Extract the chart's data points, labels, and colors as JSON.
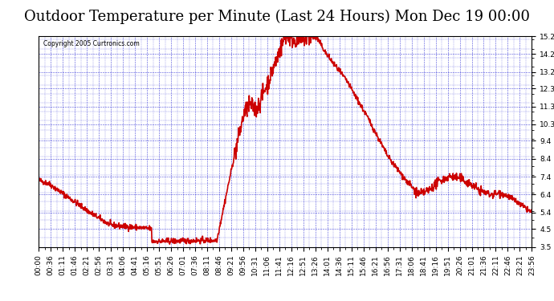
{
  "title": "Outdoor Temperature per Minute (Last 24 Hours) Mon Dec 19 00:00",
  "copyright": "Copyright 2005 Curtronics.com",
  "background_color": "#ffffff",
  "plot_bg_color": "#ffffff",
  "grid_color": "#0000cc",
  "line_color": "#cc0000",
  "line_width": 1.2,
  "ylim": [
    3.5,
    15.2
  ],
  "yticks": [
    3.5,
    4.5,
    5.4,
    6.4,
    7.4,
    8.4,
    9.4,
    10.3,
    11.3,
    12.3,
    13.2,
    14.2,
    15.2
  ],
  "xtick_labels": [
    "00:00",
    "00:36",
    "01:11",
    "01:46",
    "02:21",
    "02:56",
    "03:31",
    "04:06",
    "04:41",
    "05:16",
    "05:51",
    "06:26",
    "07:01",
    "07:36",
    "08:11",
    "08:46",
    "09:21",
    "09:56",
    "10:31",
    "11:06",
    "11:41",
    "12:16",
    "12:51",
    "13:26",
    "14:01",
    "14:36",
    "15:11",
    "15:46",
    "16:21",
    "16:56",
    "17:31",
    "18:06",
    "18:41",
    "19:16",
    "19:51",
    "20:26",
    "21:01",
    "21:36",
    "22:11",
    "22:46",
    "23:21",
    "23:56"
  ],
  "title_fontsize": 13,
  "tick_fontsize": 6.5
}
